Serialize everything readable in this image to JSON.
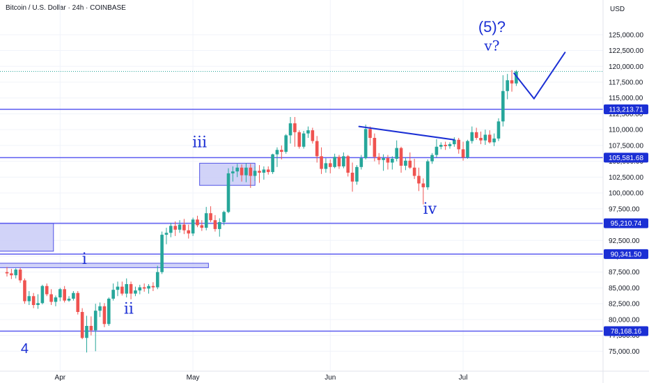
{
  "header": {
    "title": "Bitcoin / U.S. Dollar · 24h · COINBASE",
    "currency": "USD"
  },
  "colors": {
    "up": "#26a69a",
    "down": "#ef5350",
    "level": "#5b5bf0",
    "wave": "#1b2fd4",
    "box_fill": "#c9cbf7",
    "box_stroke": "#4f52e6",
    "grid": "#f0f3fa",
    "current_price_line": "#26a69a"
  },
  "chart_data": {
    "type": "candlestick",
    "title": "Bitcoin / U.S. Dollar · 24h · COINBASE",
    "ylabel": "USD",
    "ylim": [
      73500,
      128500
    ],
    "y_ticks": [
      75000,
      77500,
      80000,
      82500,
      85000,
      87500,
      90000,
      92500,
      95000,
      97500,
      100000,
      102500,
      105000,
      107500,
      110000,
      112500,
      115000,
      117500,
      120000,
      122500,
      125000
    ],
    "y_tick_labels": [
      "75,000.00",
      "77,500.00",
      "80,000.00",
      "82,500.00",
      "85,000.00",
      "87,500.00",
      "90,000.00",
      "92,500.00",
      "95,000.00",
      "97,500.00",
      "100,000.00",
      "102,500.00",
      "105,000.00",
      "107,500.00",
      "110,000.00",
      "112,500.00",
      "115,000.00",
      "117,500.00",
      "120,000.00",
      "122,500.00",
      "125,000.00"
    ],
    "x_ticks": [
      {
        "label": "Apr",
        "index": 12
      },
      {
        "label": "May",
        "index": 42
      },
      {
        "label": "Jun",
        "index": 73
      },
      {
        "label": "Jul",
        "index": 103
      }
    ],
    "candles": [
      [
        87500,
        88300,
        86800,
        87300
      ],
      [
        87300,
        88000,
        86400,
        87000
      ],
      [
        87000,
        88100,
        86500,
        87900
      ],
      [
        87900,
        88200,
        85800,
        86200
      ],
      [
        86200,
        86500,
        82500,
        82900
      ],
      [
        82900,
        84500,
        82300,
        83700
      ],
      [
        83700,
        84200,
        81800,
        82300
      ],
      [
        82300,
        84000,
        81700,
        82600
      ],
      [
        82600,
        85500,
        82400,
        85300
      ],
      [
        85300,
        85700,
        83700,
        84000
      ],
      [
        84000,
        84800,
        82300,
        82800
      ],
      [
        82800,
        83800,
        82100,
        83500
      ],
      [
        83500,
        85000,
        82900,
        84800
      ],
      [
        84800,
        85300,
        82700,
        83000
      ],
      [
        83000,
        83700,
        82800,
        83300
      ],
      [
        83300,
        84500,
        83000,
        84200
      ],
      [
        84200,
        84500,
        80800,
        81200
      ],
      [
        81200,
        81800,
        76900,
        77100
      ],
      [
        77100,
        80600,
        74800,
        79000
      ],
      [
        79000,
        80500,
        77500,
        78300
      ],
      [
        78300,
        82500,
        75000,
        81400
      ],
      [
        81400,
        82700,
        80400,
        82100
      ],
      [
        82100,
        82600,
        78800,
        79300
      ],
      [
        79300,
        83500,
        79000,
        83300
      ],
      [
        83300,
        85700,
        83000,
        84700
      ],
      [
        84700,
        86000,
        83700,
        85200
      ],
      [
        85200,
        86000,
        83800,
        84100
      ],
      [
        84100,
        86500,
        83500,
        85600
      ],
      [
        85600,
        86000,
        83200,
        84100
      ],
      [
        84100,
        85200,
        83700,
        84600
      ],
      [
        84600,
        85500,
        84000,
        85100
      ],
      [
        85100,
        85700,
        84400,
        84900
      ],
      [
        84900,
        85600,
        84100,
        85300
      ],
      [
        85300,
        85900,
        84500,
        85100
      ],
      [
        85100,
        88500,
        84800,
        87500
      ],
      [
        87500,
        93900,
        87200,
        93400
      ],
      [
        93400,
        94500,
        91900,
        93700
      ],
      [
        93700,
        95300,
        93000,
        94800
      ],
      [
        94800,
        95500,
        93200,
        94200
      ],
      [
        94200,
        95700,
        93700,
        95000
      ],
      [
        95000,
        95900,
        93500,
        94100
      ],
      [
        94100,
        95000,
        92800,
        93600
      ],
      [
        93600,
        96100,
        93200,
        95800
      ],
      [
        95800,
        96400,
        94600,
        94900
      ],
      [
        94900,
        95700,
        94000,
        94500
      ],
      [
        94500,
        97800,
        94100,
        96800
      ],
      [
        96800,
        97900,
        95400,
        95700
      ],
      [
        95700,
        96500,
        93900,
        94300
      ],
      [
        94300,
        96000,
        93100,
        95400
      ],
      [
        95400,
        97200,
        94900,
        97000
      ],
      [
        97000,
        103900,
        96800,
        103100
      ],
      [
        103100,
        104200,
        101800,
        103400
      ],
      [
        103400,
        104600,
        102500,
        104000
      ],
      [
        104000,
        104500,
        101800,
        102800
      ],
      [
        102800,
        104700,
        101700,
        104000
      ],
      [
        104000,
        104600,
        100800,
        102700
      ],
      [
        102700,
        104200,
        101900,
        103500
      ],
      [
        103500,
        104400,
        101600,
        103200
      ],
      [
        103200,
        104200,
        102100,
        103700
      ],
      [
        103700,
        104200,
        102900,
        103300
      ],
      [
        103300,
        106200,
        103000,
        106100
      ],
      [
        106100,
        107200,
        104100,
        106800
      ],
      [
        106800,
        107500,
        105300,
        106500
      ],
      [
        106500,
        109300,
        106200,
        109100
      ],
      [
        109100,
        112000,
        107800,
        111000
      ],
      [
        111000,
        112000,
        107300,
        109600
      ],
      [
        109600,
        109900,
        107000,
        107300
      ],
      [
        107300,
        109800,
        107000,
        109400
      ],
      [
        109400,
        110500,
        108700,
        109900
      ],
      [
        109900,
        110300,
        107800,
        108200
      ],
      [
        108200,
        109000,
        104800,
        105800
      ],
      [
        105800,
        107200,
        103000,
        103800
      ],
      [
        103800,
        105500,
        103200,
        104700
      ],
      [
        104700,
        105300,
        103100,
        104100
      ],
      [
        104100,
        106200,
        103900,
        105700
      ],
      [
        105700,
        106000,
        103800,
        104200
      ],
      [
        104200,
        106400,
        103900,
        105800
      ],
      [
        105800,
        106000,
        102600,
        103200
      ],
      [
        103200,
        104800,
        100200,
        101800
      ],
      [
        101800,
        104400,
        101300,
        104100
      ],
      [
        104100,
        106000,
        103700,
        105500
      ],
      [
        105500,
        110800,
        105300,
        110100
      ],
      [
        110100,
        110500,
        107500,
        108700
      ],
      [
        108700,
        109400,
        105000,
        105700
      ],
      [
        105700,
        106300,
        104500,
        105200
      ],
      [
        105200,
        106100,
        103500,
        105500
      ],
      [
        105500,
        106000,
        103700,
        104800
      ],
      [
        104800,
        105800,
        103700,
        105400
      ],
      [
        105400,
        108300,
        105000,
        107100
      ],
      [
        107100,
        107300,
        103200,
        104300
      ],
      [
        104300,
        105600,
        103600,
        105100
      ],
      [
        105100,
        106400,
        103800,
        104000
      ],
      [
        104000,
        105400,
        102200,
        102700
      ],
      [
        102700,
        104000,
        100300,
        101500
      ],
      [
        101500,
        102300,
        98200,
        100900
      ],
      [
        100900,
        105300,
        100500,
        105000
      ],
      [
        105000,
        106300,
        104600,
        106000
      ],
      [
        106000,
        108500,
        105600,
        107300
      ],
      [
        107300,
        108000,
        106900,
        107600
      ],
      [
        107600,
        108100,
        106800,
        107400
      ],
      [
        107400,
        108000,
        107000,
        107700
      ],
      [
        107700,
        108800,
        107300,
        108400
      ],
      [
        108400,
        108700,
        106200,
        106900
      ],
      [
        106900,
        108100,
        105100,
        105600
      ],
      [
        105600,
        108400,
        105400,
        108200
      ],
      [
        108200,
        110500,
        107800,
        109600
      ],
      [
        109600,
        110300,
        108400,
        108700
      ],
      [
        108700,
        109700,
        107700,
        108300
      ],
      [
        108300,
        110000,
        107600,
        109200
      ],
      [
        109200,
        109900,
        107800,
        108000
      ],
      [
        108000,
        109400,
        107400,
        108600
      ],
      [
        108600,
        111800,
        108200,
        111300
      ],
      [
        111300,
        118600,
        110500,
        116100
      ],
      [
        116100,
        118800,
        114800,
        117800
      ],
      [
        117800,
        119400,
        116000,
        117300
      ],
      [
        117300,
        119400,
        116900,
        119200
      ]
    ],
    "levels": [
      {
        "price": 113213.71,
        "label": "113,213.71"
      },
      {
        "price": 105581.68,
        "label": "105,581.68"
      },
      {
        "price": 95210.74,
        "label": "95,210.74"
      },
      {
        "price": 90341.5,
        "label": "90,341.50"
      },
      {
        "price": 78168.16,
        "label": "78,168.16"
      }
    ],
    "current_price": 119200,
    "boxes": [
      {
        "i0": -2,
        "i1": 10.5,
        "p0": 90800,
        "p1": 95200
      },
      {
        "i0": -2,
        "i1": 45.5,
        "p0": 88200,
        "p1": 88900
      },
      {
        "i0": 43.5,
        "i1": 56,
        "p0": 101200,
        "p1": 104700
      }
    ],
    "lines": [
      {
        "i0": 79.5,
        "p0": 110500,
        "i1": 101,
        "p1": 108400,
        "width": 2
      },
      {
        "i0": 114.5,
        "p0": 118900,
        "i1": 119,
        "p1": 114900,
        "width": 2
      },
      {
        "i0": 119,
        "p0": 114900,
        "i1": 126,
        "p1": 122200,
        "width": 2
      }
    ],
    "annotations": [
      {
        "text": "(5)?",
        "i": 109.5,
        "p": 125400,
        "size": 22,
        "style": "sans"
      },
      {
        "text": "v?",
        "i": 109.5,
        "p": 122500,
        "size": 20,
        "style": "serif"
      },
      {
        "text": "iii",
        "i": 43.5,
        "p": 107200,
        "size": 22,
        "style": "serif"
      },
      {
        "text": "iv",
        "i": 95.5,
        "p": 96700,
        "size": 22,
        "style": "serif"
      },
      {
        "text": "i",
        "i": 17.5,
        "p": 88800,
        "size": 22,
        "style": "serif"
      },
      {
        "text": "ii",
        "i": 27.5,
        "p": 80900,
        "size": 22,
        "style": "serif"
      },
      {
        "text": "4",
        "i": 4,
        "p": 74700,
        "size": 20,
        "style": "sans"
      }
    ]
  }
}
